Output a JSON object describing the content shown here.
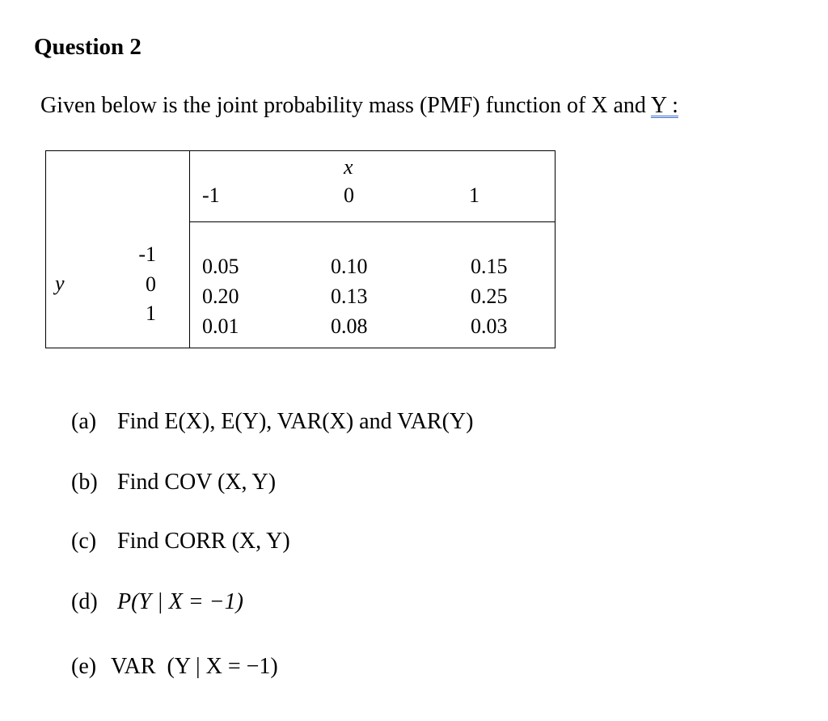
{
  "header": {
    "title": "Question 2",
    "intro": "Given below is the joint probability mass (PMF) function of X and",
    "intro_underlined": "Y :"
  },
  "table": {
    "x_label": "x",
    "y_label": "y",
    "x_values": [
      "-1",
      "0",
      "1"
    ],
    "y_values": [
      "-1",
      "0",
      "1"
    ],
    "rows": [
      [
        "0.05",
        "0.10",
        "0.15"
      ],
      [
        "0.20",
        "0.13",
        "0.25"
      ],
      [
        "0.01",
        "0.08",
        "0.03"
      ]
    ]
  },
  "items": [
    {
      "label": "(a)",
      "text": "Find E(X), E(Y), VAR(X) and VAR(Y)"
    },
    {
      "label": "(b)",
      "text": "Find COV (X, Y)"
    },
    {
      "label": "(c)",
      "text": "Find CORR (X, Y)"
    },
    {
      "label": "(d)",
      "text": "P(Y | X = −1)"
    },
    {
      "label": "(e)",
      "text": "VAR  (Y | X = −1)"
    }
  ]
}
